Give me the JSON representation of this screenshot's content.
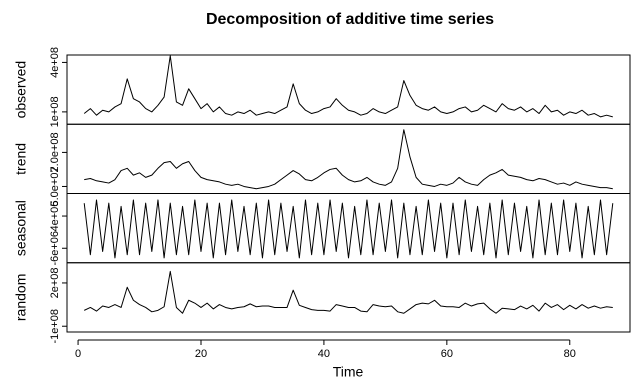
{
  "chart_data": {
    "type": "line",
    "title": "Decomposition of additive time series",
    "xlabel": "Time",
    "xlim": [
      -1.8,
      89.8
    ],
    "xticks": [
      0,
      20,
      40,
      60,
      80
    ],
    "x": [
      1,
      2,
      3,
      4,
      5,
      6,
      7,
      8,
      9,
      10,
      11,
      12,
      13,
      14,
      15,
      16,
      17,
      18,
      19,
      20,
      21,
      22,
      23,
      24,
      25,
      26,
      27,
      28,
      29,
      30,
      31,
      32,
      33,
      34,
      35,
      36,
      37,
      38,
      39,
      40,
      41,
      42,
      43,
      44,
      45,
      46,
      47,
      48,
      49,
      50,
      51,
      52,
      53,
      54,
      55,
      56,
      57,
      58,
      59,
      60,
      61,
      62,
      63,
      64,
      65,
      66,
      67,
      68,
      69,
      70,
      71,
      72,
      73,
      74,
      75,
      76,
      77,
      78,
      79,
      80,
      81,
      82,
      83,
      84,
      85,
      86,
      87
    ],
    "series": [
      {
        "name": "observed",
        "color": "#000000",
        "ylim": [
          25000000.0,
          445000000.0
        ],
        "yticks": [
          {
            "value": 100000000.0,
            "label": "1e+08"
          },
          {
            "value": 400000000.0,
            "label": "4e+08"
          }
        ],
        "values": [
          90000000.0,
          120000000.0,
          80000000.0,
          110000000.0,
          100000000.0,
          130000000.0,
          150000000.0,
          300000000.0,
          180000000.0,
          160000000.0,
          120000000.0,
          100000000.0,
          140000000.0,
          190000000.0,
          440000000.0,
          160000000.0,
          140000000.0,
          240000000.0,
          180000000.0,
          120000000.0,
          150000000.0,
          100000000.0,
          130000000.0,
          90000000.0,
          80000000.0,
          100000000.0,
          90000000.0,
          110000000.0,
          80000000.0,
          90000000.0,
          100000000.0,
          90000000.0,
          110000000.0,
          130000000.0,
          270000000.0,
          150000000.0,
          110000000.0,
          90000000.0,
          100000000.0,
          120000000.0,
          130000000.0,
          180000000.0,
          140000000.0,
          110000000.0,
          100000000.0,
          80000000.0,
          90000000.0,
          120000000.0,
          100000000.0,
          90000000.0,
          110000000.0,
          130000000.0,
          290000000.0,
          200000000.0,
          140000000.0,
          120000000.0,
          110000000.0,
          130000000.0,
          100000000.0,
          90000000.0,
          100000000.0,
          120000000.0,
          130000000.0,
          100000000.0,
          110000000.0,
          140000000.0,
          120000000.0,
          100000000.0,
          150000000.0,
          120000000.0,
          110000000.0,
          130000000.0,
          100000000.0,
          120000000.0,
          90000000.0,
          140000000.0,
          100000000.0,
          110000000.0,
          80000000.0,
          100000000.0,
          90000000.0,
          110000000.0,
          80000000.0,
          90000000.0,
          70000000.0,
          80000000.0,
          70000000.0
        ]
      },
      {
        "name": "trend",
        "color": "#000000",
        "ylim": [
          19000000.0,
          324000000.0
        ],
        "yticks": [
          {
            "value": 50000000.0,
            "label": "5.0e+07"
          },
          {
            "value": 200000000.0,
            "label": "2.0e+08"
          }
        ],
        "values": [
          80000000.0,
          85000000.0,
          75000000.0,
          70000000.0,
          65000000.0,
          80000000.0,
          120000000.0,
          130000000.0,
          100000000.0,
          110000000.0,
          90000000.0,
          100000000.0,
          130000000.0,
          155000000.0,
          160000000.0,
          130000000.0,
          150000000.0,
          160000000.0,
          120000000.0,
          90000000.0,
          80000000.0,
          75000000.0,
          70000000.0,
          60000000.0,
          55000000.0,
          60000000.0,
          50000000.0,
          45000000.0,
          40000000.0,
          45000000.0,
          50000000.0,
          60000000.0,
          80000000.0,
          100000000.0,
          120000000.0,
          105000000.0,
          80000000.0,
          75000000.0,
          90000000.0,
          110000000.0,
          125000000.0,
          130000000.0,
          100000000.0,
          80000000.0,
          70000000.0,
          75000000.0,
          90000000.0,
          70000000.0,
          60000000.0,
          55000000.0,
          70000000.0,
          130000000.0,
          300000000.0,
          180000000.0,
          90000000.0,
          60000000.0,
          55000000.0,
          50000000.0,
          60000000.0,
          55000000.0,
          65000000.0,
          90000000.0,
          70000000.0,
          60000000.0,
          55000000.0,
          80000000.0,
          100000000.0,
          110000000.0,
          125000000.0,
          100000000.0,
          95000000.0,
          90000000.0,
          80000000.0,
          75000000.0,
          85000000.0,
          80000000.0,
          70000000.0,
          60000000.0,
          65000000.0,
          55000000.0,
          70000000.0,
          60000000.0,
          55000000.0,
          50000000.0,
          45000000.0,
          45000000.0,
          40000000.0
        ]
      },
      {
        "name": "seasonal",
        "color": "#000000",
        "ylim": [
          -10500000.0,
          11000000.0
        ],
        "yticks": [
          {
            "value": -6000000.0,
            "label": "-6e+06"
          },
          {
            "value": 4000000.0,
            "label": "4e+06"
          }
        ],
        "values": [
          8000000.0,
          -8000000.0,
          9000000.0,
          -7000000.0,
          8000000.0,
          -9000000.0,
          7000000.0,
          -8000000.0,
          9000000.0,
          -8000000.0,
          8000000.0,
          -7000000.0,
          9000000.0,
          -9000000.0,
          8000000.0,
          -8000000.0,
          7000000.0,
          -8000000.0,
          9000000.0,
          -7000000.0,
          8000000.0,
          -9000000.0,
          8000000.0,
          -8000000.0,
          9000000.0,
          -7000000.0,
          7000000.0,
          -8000000.0,
          8000000.0,
          -9000000.0,
          9000000.0,
          -8000000.0,
          8000000.0,
          -7000000.0,
          7000000.0,
          -9000000.0,
          9000000.0,
          -8000000.0,
          8000000.0,
          -8000000.0,
          9000000.0,
          -7000000.0,
          8000000.0,
          -9000000.0,
          7000000.0,
          -8000000.0,
          9000000.0,
          -8000000.0,
          8000000.0,
          -7000000.0,
          9000000.0,
          -9000000.0,
          8000000.0,
          -8000000.0,
          7000000.0,
          -8000000.0,
          9000000.0,
          -7000000.0,
          8000000.0,
          -9000000.0,
          8000000.0,
          -8000000.0,
          9000000.0,
          -7000000.0,
          7000000.0,
          -8000000.0,
          8000000.0,
          -9000000.0,
          9000000.0,
          -8000000.0,
          8000000.0,
          -7000000.0,
          7000000.0,
          -9000000.0,
          9000000.0,
          -8000000.0,
          8000000.0,
          -8000000.0,
          9000000.0,
          -7000000.0,
          8000000.0,
          -9000000.0,
          7000000.0,
          -8000000.0,
          9000000.0,
          -8000000.0,
          8000000.0
        ]
      },
      {
        "name": "random",
        "color": "#000000",
        "ylim": [
          -140000000.0,
          340000000.0
        ],
        "yticks": [
          {
            "value": -100000000.0,
            "label": "-1e+08"
          },
          {
            "value": 200000000.0,
            "label": "2e+08"
          }
        ],
        "values": [
          10000000.0,
          30000000.0,
          5000000.0,
          40000000.0,
          30000000.0,
          50000000.0,
          30000000.0,
          170000000.0,
          80000000.0,
          50000000.0,
          30000000.0,
          0.0,
          10000000.0,
          35000000.0,
          280000000.0,
          30000000.0,
          -10000000.0,
          80000000.0,
          60000000.0,
          30000000.0,
          60000000.0,
          20000000.0,
          50000000.0,
          30000000.0,
          20000000.0,
          30000000.0,
          35000000.0,
          55000000.0,
          35000000.0,
          40000000.0,
          40000000.0,
          30000000.0,
          30000000.0,
          30000000.0,
          150000000.0,
          45000000.0,
          30000000.0,
          15000000.0,
          10000000.0,
          10000000.0,
          5000000.0,
          50000000.0,
          40000000.0,
          30000000.0,
          30000000.0,
          5000000.0,
          0.0,
          50000000.0,
          40000000.0,
          35000000.0,
          40000000.0,
          0.0,
          -10000000.0,
          20000000.0,
          50000000.0,
          60000000.0,
          55000000.0,
          80000000.0,
          40000000.0,
          35000000.0,
          35000000.0,
          30000000.0,
          60000000.0,
          40000000.0,
          55000000.0,
          60000000.0,
          20000000.0,
          -10000000.0,
          25000000.0,
          20000000.0,
          15000000.0,
          40000000.0,
          20000000.0,
          45000000.0,
          5000000.0,
          60000000.0,
          30000000.0,
          50000000.0,
          15000000.0,
          45000000.0,
          20000000.0,
          50000000.0,
          25000000.0,
          40000000.0,
          25000000.0,
          35000000.0,
          30000000.0
        ]
      }
    ]
  }
}
